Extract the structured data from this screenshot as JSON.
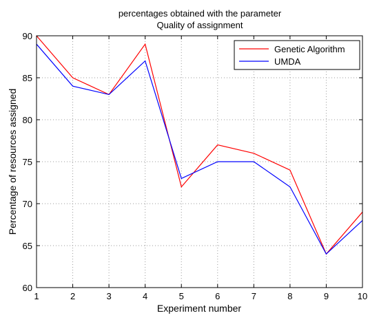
{
  "chart_data": {
    "type": "line",
    "title": [
      "percentages obtained with the parameter",
      "Quality of assignment"
    ],
    "xlabel": "Experiment number",
    "ylabel": "Percentage of resources assigned",
    "xlim": [
      1,
      10
    ],
    "ylim": [
      60,
      90
    ],
    "xticks": [
      1,
      2,
      3,
      4,
      5,
      6,
      7,
      8,
      9,
      10
    ],
    "yticks": [
      60,
      65,
      70,
      75,
      80,
      85,
      90
    ],
    "x": [
      1,
      2,
      3,
      4,
      5,
      6,
      7,
      8,
      9,
      10
    ],
    "grid": true,
    "legend_position": "top-right",
    "series": [
      {
        "name": "Genetic Algorithm",
        "color": "#ff0000",
        "values": [
          90,
          85,
          83,
          89,
          72,
          77,
          76,
          74,
          64,
          69
        ]
      },
      {
        "name": "UMDA",
        "color": "#0000ff",
        "values": [
          89,
          84,
          83,
          87,
          73,
          75,
          75,
          72,
          64,
          68
        ]
      }
    ]
  }
}
